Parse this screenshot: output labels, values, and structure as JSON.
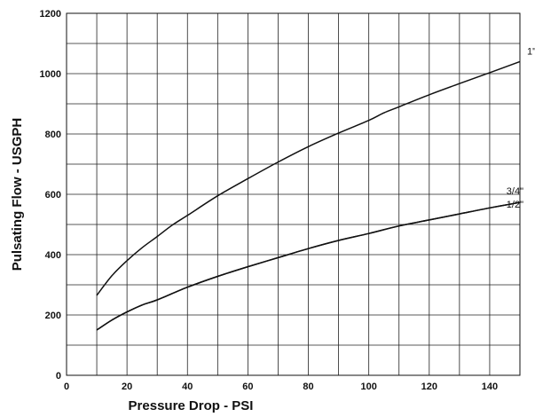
{
  "chart_data": {
    "type": "line",
    "title": "",
    "xlabel": "Pressure Drop - PSI",
    "ylabel": "Pulsating Flow - USGPH",
    "xlim": [
      0,
      150
    ],
    "ylim": [
      0,
      1200
    ],
    "x_ticks": [
      "0",
      "20",
      "40",
      "60",
      "80",
      "100",
      "120",
      "140"
    ],
    "y_ticks": [
      "0",
      "200",
      "400",
      "600",
      "800",
      "1000",
      "1200"
    ],
    "x_grid_step": 10,
    "y_grid_step": 100,
    "grid": true,
    "series": [
      {
        "name": "1\"",
        "x": [
          10,
          15,
          20,
          25,
          30,
          35,
          40,
          50,
          60,
          70,
          80,
          90,
          100,
          105,
          110,
          120,
          130,
          140,
          150
        ],
        "y": [
          265,
          330,
          380,
          423,
          460,
          498,
          530,
          595,
          652,
          707,
          758,
          803,
          845,
          870,
          890,
          930,
          967,
          1003,
          1040
        ]
      },
      {
        "name": "3/4\"",
        "x": [
          10,
          15,
          20,
          25,
          30,
          40,
          50,
          60,
          70,
          80,
          90,
          100,
          110,
          120,
          130,
          140,
          150
        ],
        "y": [
          150,
          183,
          210,
          233,
          250,
          292,
          328,
          360,
          390,
          420,
          447,
          470,
          495,
          515,
          535,
          555,
          573
        ]
      },
      {
        "name": "1/2\"",
        "x": [
          10,
          15,
          20,
          25,
          30,
          40,
          50,
          60,
          70,
          80,
          90,
          100,
          110,
          120,
          130,
          140,
          150
        ],
        "y": [
          150,
          183,
          210,
          233,
          250,
          292,
          328,
          360,
          390,
          420,
          447,
          470,
          495,
          515,
          535,
          555,
          573
        ]
      }
    ]
  }
}
